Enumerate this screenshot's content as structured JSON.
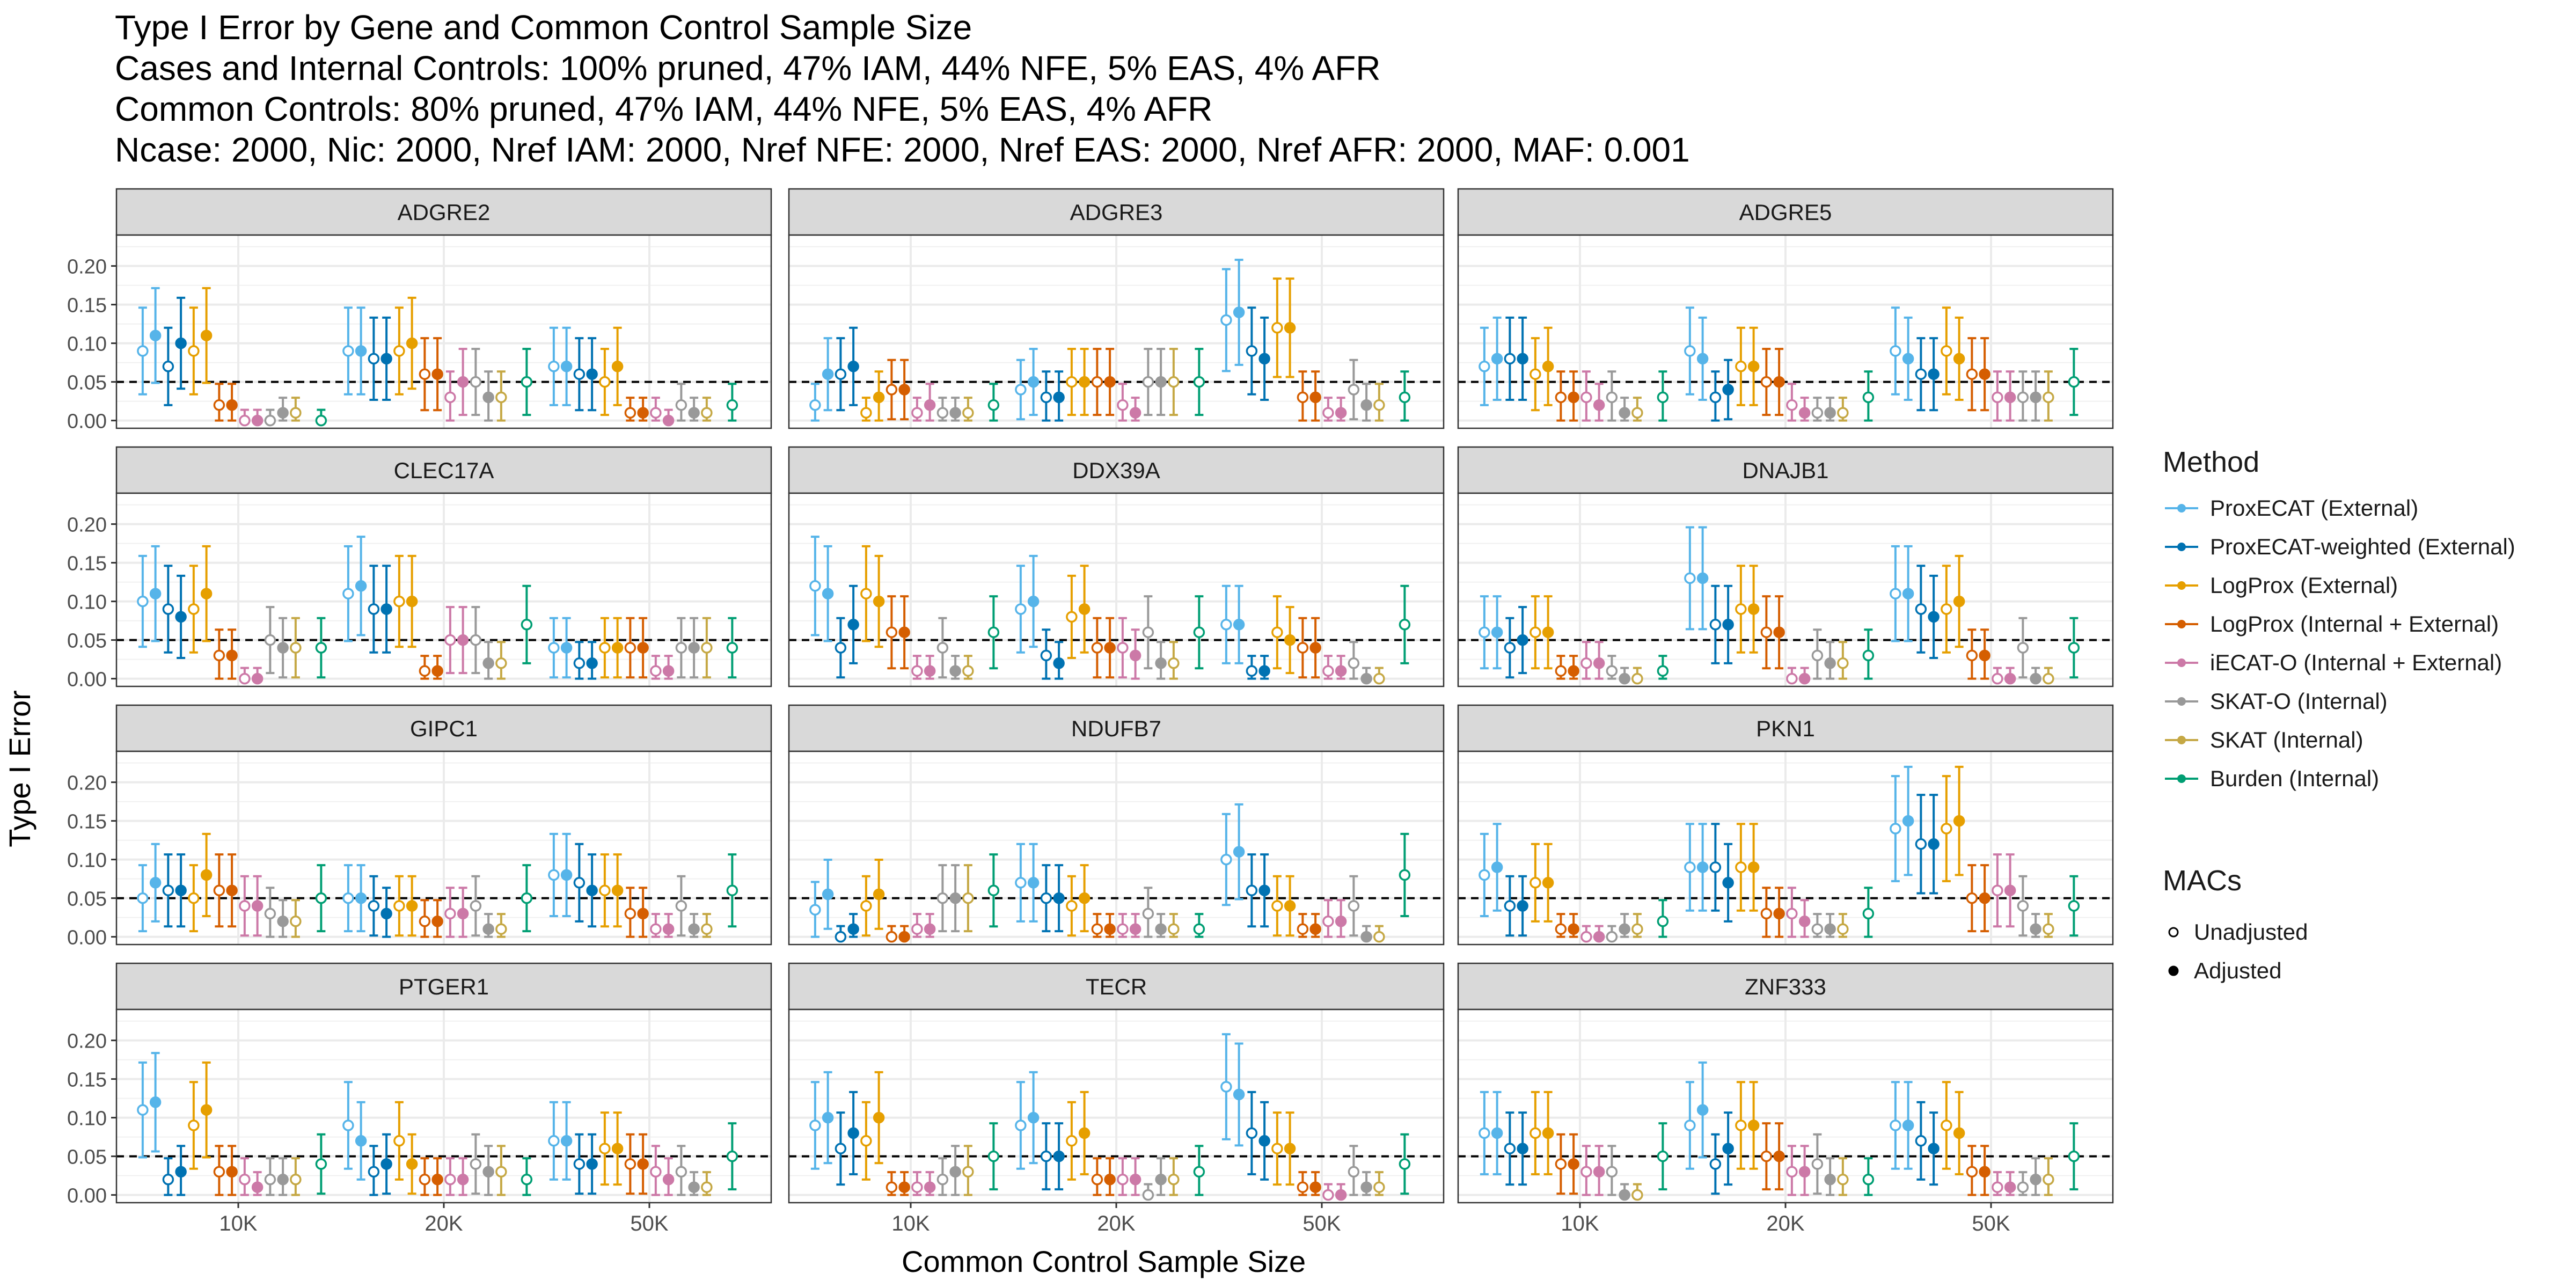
{
  "titles": [
    "Type I Error by Gene and Common Control Sample Size",
    "Cases and Internal Controls: 100% pruned, 47% IAM, 44% NFE, 5% EAS, 4% AFR",
    "Common Controls: 80% pruned, 47% IAM, 44% NFE, 5% EAS, 4% AFR",
    "Ncase: 2000, Nic: 2000, Nref IAM: 2000, Nref NFE: 2000, Nref EAS: 2000, Nref AFR: 2000, MAF: 0.001"
  ],
  "legend": {
    "method_title": "Method",
    "methods": [
      {
        "label": "ProxECAT (External)",
        "color": "#56B4E9"
      },
      {
        "label": "ProxECAT-weighted (External)",
        "color": "#0072B2"
      },
      {
        "label": "LogProx (External)",
        "color": "#E69F00"
      },
      {
        "label": "LogProx (Internal + External)",
        "color": "#D55E00"
      },
      {
        "label": "iECAT-O (Internal + External)",
        "color": "#CC79A7"
      },
      {
        "label": "SKAT-O (Internal)",
        "color": "#999999"
      },
      {
        "label": "SKAT (Internal)",
        "color": "#C5A845"
      },
      {
        "label": "Burden (Internal)",
        "color": "#009E73"
      }
    ],
    "macs_title": "MACs",
    "macs": [
      "Unadjusted",
      "Adjusted"
    ]
  },
  "chart_data": {
    "type": "scatter",
    "subtype": "faceted point-and-errorbar",
    "xlabel": "Common Control Sample Size",
    "ylabel": "Type I Error",
    "categories": [
      "10K",
      "20K",
      "50K"
    ],
    "y_ticks": [
      "0.00",
      "0.05",
      "0.10",
      "0.15",
      "0.20"
    ],
    "ylim": [
      -0.01,
      0.24
    ],
    "reference_line": 0.05,
    "grid": true,
    "legend_position": "right",
    "series_order": [
      "ProxECAT (External)",
      "ProxECAT-weighted (External)",
      "LogProx (External)",
      "LogProx (Internal + External)",
      "iECAT-O (Internal + External)",
      "SKAT-O (Internal)",
      "SKAT (Internal)",
      "Burden (Internal)"
    ],
    "value_layout": "per category: 8 methods x [unadjusted, adjusted]",
    "panels": [
      {
        "gene": "ADGRE2",
        "values": [
          [
            0.09,
            0.11,
            0.07,
            0.1,
            0.09,
            0.11,
            0.02,
            0.02,
            0.0,
            0.0,
            0.0,
            0.01,
            0.01,
            null,
            0.0,
            null
          ],
          [
            0.09,
            0.09,
            0.08,
            0.08,
            0.09,
            0.1,
            0.06,
            0.06,
            0.03,
            0.05,
            0.05,
            0.03,
            0.03,
            null,
            0.05,
            null
          ],
          [
            0.07,
            0.07,
            0.06,
            0.06,
            0.05,
            0.07,
            0.01,
            0.01,
            0.01,
            0.0,
            0.02,
            0.01,
            0.01,
            null,
            0.02,
            null
          ]
        ]
      },
      {
        "gene": "ADGRE3",
        "values": [
          [
            0.02,
            0.06,
            0.06,
            0.07,
            0.01,
            0.03,
            0.04,
            0.04,
            0.01,
            0.02,
            0.01,
            0.01,
            0.01,
            null,
            0.02,
            null
          ],
          [
            0.04,
            0.05,
            0.03,
            0.03,
            0.05,
            0.05,
            0.05,
            0.05,
            0.02,
            0.01,
            0.05,
            0.05,
            0.05,
            null,
            0.05,
            null
          ],
          [
            0.13,
            0.14,
            0.09,
            0.08,
            0.12,
            0.12,
            0.03,
            0.03,
            0.01,
            0.01,
            0.04,
            0.02,
            0.02,
            null,
            0.03,
            null
          ]
        ]
      },
      {
        "gene": "ADGRE5",
        "values": [
          [
            0.07,
            0.08,
            0.08,
            0.08,
            0.06,
            0.07,
            0.03,
            0.03,
            0.03,
            0.02,
            0.03,
            0.01,
            0.01,
            null,
            0.03,
            null
          ],
          [
            0.09,
            0.08,
            0.03,
            0.04,
            0.07,
            0.07,
            0.05,
            0.05,
            0.02,
            0.01,
            0.01,
            0.01,
            0.01,
            null,
            0.03,
            null
          ],
          [
            0.09,
            0.08,
            0.06,
            0.06,
            0.09,
            0.08,
            0.06,
            0.06,
            0.03,
            0.03,
            0.03,
            0.03,
            0.03,
            null,
            0.05,
            null
          ]
        ]
      },
      {
        "gene": "CLEC17A",
        "values": [
          [
            0.1,
            0.11,
            0.09,
            0.08,
            0.09,
            0.11,
            0.03,
            0.03,
            0.0,
            0.0,
            0.05,
            0.04,
            0.04,
            null,
            0.04,
            null
          ],
          [
            0.11,
            0.12,
            0.09,
            0.09,
            0.1,
            0.1,
            0.01,
            0.01,
            0.05,
            0.05,
            0.05,
            0.02,
            0.02,
            null,
            0.07,
            null
          ],
          [
            0.04,
            0.04,
            0.02,
            0.02,
            0.04,
            0.04,
            0.04,
            0.04,
            0.01,
            0.01,
            0.04,
            0.04,
            0.04,
            null,
            0.04,
            null
          ]
        ]
      },
      {
        "gene": "DDX39A",
        "values": [
          [
            0.12,
            0.11,
            0.04,
            0.07,
            0.11,
            0.1,
            0.06,
            0.06,
            0.01,
            0.01,
            0.04,
            0.01,
            0.01,
            null,
            0.06,
            null
          ],
          [
            0.09,
            0.1,
            0.03,
            0.02,
            0.08,
            0.09,
            0.04,
            0.04,
            0.04,
            0.03,
            0.06,
            0.02,
            0.02,
            null,
            0.06,
            null
          ],
          [
            0.07,
            0.07,
            0.01,
            0.01,
            0.06,
            0.05,
            0.04,
            0.04,
            0.01,
            0.01,
            0.02,
            0.0,
            0.0,
            null,
            0.07,
            null
          ]
        ]
      },
      {
        "gene": "DNAJB1",
        "values": [
          [
            0.06,
            0.06,
            0.04,
            0.05,
            0.06,
            0.06,
            0.01,
            0.01,
            0.02,
            0.02,
            0.01,
            0.0,
            0.0,
            null,
            0.01,
            null
          ],
          [
            0.13,
            0.13,
            0.07,
            0.07,
            0.09,
            0.09,
            0.06,
            0.06,
            0.0,
            0.0,
            0.03,
            0.02,
            0.02,
            null,
            0.03,
            null
          ],
          [
            0.11,
            0.11,
            0.09,
            0.08,
            0.09,
            0.1,
            0.03,
            0.03,
            0.0,
            0.0,
            0.04,
            0.0,
            0.0,
            null,
            0.04,
            null
          ]
        ]
      },
      {
        "gene": "GIPC1",
        "values": [
          [
            0.05,
            0.07,
            0.06,
            0.06,
            0.05,
            0.08,
            0.06,
            0.06,
            0.04,
            0.04,
            0.03,
            0.02,
            0.02,
            null,
            0.05,
            null
          ],
          [
            0.05,
            0.05,
            0.04,
            0.03,
            0.04,
            0.04,
            0.02,
            0.02,
            0.03,
            0.03,
            0.04,
            0.01,
            0.01,
            null,
            0.05,
            null
          ],
          [
            0.08,
            0.08,
            0.07,
            0.06,
            0.06,
            0.06,
            0.03,
            0.03,
            0.01,
            0.01,
            0.04,
            0.01,
            0.01,
            null,
            0.06,
            null
          ]
        ]
      },
      {
        "gene": "NDUFB7",
        "values": [
          [
            0.035,
            0.055,
            0.0,
            0.01,
            0.04,
            0.055,
            0.0,
            0.0,
            0.01,
            0.01,
            0.05,
            0.05,
            0.05,
            null,
            0.06,
            null
          ],
          [
            0.07,
            0.07,
            0.05,
            0.05,
            0.04,
            0.05,
            0.01,
            0.01,
            0.01,
            0.01,
            0.03,
            0.01,
            0.01,
            null,
            0.01,
            null
          ],
          [
            0.1,
            0.11,
            0.06,
            0.06,
            0.04,
            0.04,
            0.01,
            0.01,
            0.02,
            0.02,
            0.04,
            0.0,
            0.0,
            null,
            0.08,
            null
          ]
        ]
      },
      {
        "gene": "PKN1",
        "values": [
          [
            0.08,
            0.09,
            0.04,
            0.04,
            0.07,
            0.07,
            0.01,
            0.01,
            0.0,
            0.0,
            0.0,
            0.01,
            0.01,
            null,
            0.02,
            null
          ],
          [
            0.09,
            0.09,
            0.09,
            0.07,
            0.09,
            0.09,
            0.03,
            0.03,
            0.03,
            0.02,
            0.01,
            0.01,
            0.01,
            null,
            0.03,
            null
          ],
          [
            0.14,
            0.15,
            0.12,
            0.12,
            0.14,
            0.15,
            0.05,
            0.05,
            0.06,
            0.06,
            0.04,
            0.01,
            0.01,
            null,
            0.04,
            null
          ]
        ]
      },
      {
        "gene": "PTGER1",
        "values": [
          [
            0.11,
            0.12,
            0.02,
            0.03,
            0.09,
            0.11,
            0.03,
            0.03,
            0.02,
            0.01,
            0.02,
            0.02,
            0.02,
            null,
            0.04,
            null
          ],
          [
            0.09,
            0.07,
            0.03,
            0.04,
            0.07,
            0.04,
            0.02,
            0.02,
            0.02,
            0.02,
            0.04,
            0.03,
            0.03,
            null,
            0.02,
            null
          ],
          [
            0.07,
            0.07,
            0.04,
            0.04,
            0.06,
            0.06,
            0.04,
            0.04,
            0.03,
            0.02,
            0.03,
            0.01,
            0.01,
            null,
            0.05,
            null
          ]
        ]
      },
      {
        "gene": "TECR",
        "values": [
          [
            0.09,
            0.1,
            0.06,
            0.08,
            0.07,
            0.1,
            0.01,
            0.01,
            0.01,
            0.01,
            0.02,
            0.03,
            0.03,
            null,
            0.05,
            null
          ],
          [
            0.09,
            0.1,
            0.05,
            0.05,
            0.07,
            0.08,
            0.02,
            0.02,
            0.02,
            0.02,
            0.0,
            0.02,
            0.02,
            null,
            0.03,
            null
          ],
          [
            0.14,
            0.13,
            0.08,
            0.07,
            0.06,
            0.06,
            0.01,
            0.01,
            0.0,
            0.0,
            0.03,
            0.01,
            0.01,
            null,
            0.04,
            null
          ]
        ]
      },
      {
        "gene": "ZNF333",
        "values": [
          [
            0.08,
            0.08,
            0.06,
            0.06,
            0.08,
            0.08,
            0.04,
            0.04,
            0.03,
            0.03,
            0.03,
            0.0,
            0.0,
            null,
            0.05,
            null
          ],
          [
            0.09,
            0.11,
            0.04,
            0.06,
            0.09,
            0.09,
            0.05,
            0.05,
            0.03,
            0.03,
            0.04,
            0.02,
            0.02,
            null,
            0.02,
            null
          ],
          [
            0.09,
            0.09,
            0.07,
            0.06,
            0.09,
            0.08,
            0.03,
            0.03,
            0.01,
            0.01,
            0.01,
            0.02,
            0.02,
            null,
            0.05,
            null
          ]
        ]
      }
    ]
  }
}
